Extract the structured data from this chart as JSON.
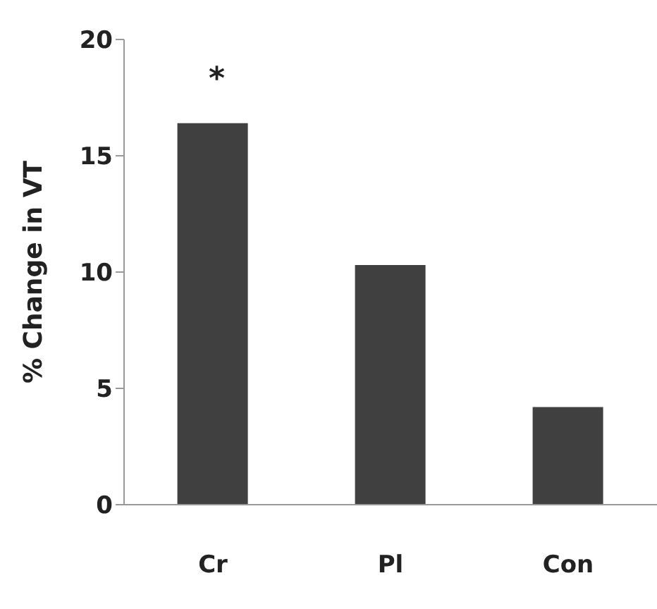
{
  "chart_data": {
    "type": "bar",
    "ylabel": "% Change in VT",
    "categories": [
      "Cr",
      "Pl",
      "Con"
    ],
    "values": [
      16.4,
      10.3,
      4.2
    ],
    "color": "#404040",
    "ylim": [
      0,
      20
    ],
    "yticks": [
      0,
      5,
      10,
      15,
      20
    ],
    "grid": false,
    "annotations": [
      "*"
    ]
  }
}
